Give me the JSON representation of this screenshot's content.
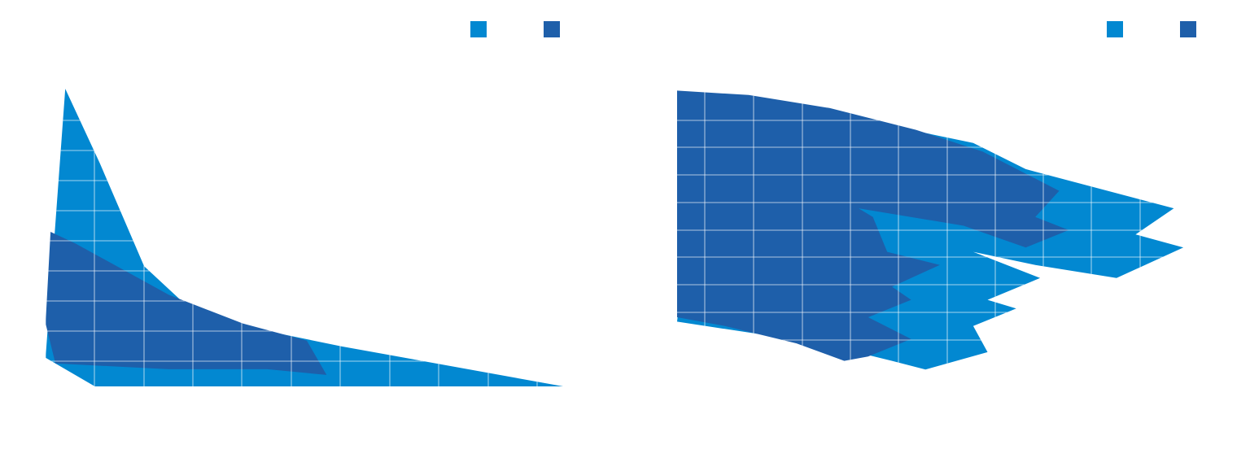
{
  "colors": {
    "series_a": "#0288D1",
    "series_b": "#1E5FAA",
    "grid": "#ffffff",
    "background": "#ffffff"
  },
  "chart_data": [
    {
      "type": "area",
      "title": "",
      "xlabel": "",
      "ylabel": "",
      "grid": true,
      "legend_position": "top-right",
      "series": [
        {
          "color": "#0288D1",
          "outline": [
            [
              0.4,
              6.3
            ],
            [
              1.1,
              5.0
            ],
            [
              2.0,
              3.2
            ],
            [
              3.0,
              2.4
            ],
            [
              4.3,
              2.1
            ],
            [
              6.0,
              1.8
            ],
            [
              10.5,
              1.1
            ],
            [
              1.0,
              1.1
            ],
            [
              0.0,
              1.6
            ]
          ]
        },
        {
          "color": "#1E5FAA",
          "outline": [
            [
              0.1,
              3.8
            ],
            [
              0.6,
              3.6
            ],
            [
              2.5,
              2.7
            ],
            [
              4.0,
              2.2
            ],
            [
              5.3,
              1.9
            ],
            [
              5.7,
              1.3
            ],
            [
              4.5,
              1.4
            ],
            [
              2.5,
              1.4
            ],
            [
              0.2,
              1.5
            ],
            [
              0.0,
              2.2
            ]
          ]
        }
      ]
    },
    {
      "type": "area",
      "title": "",
      "xlabel": "",
      "ylabel": "",
      "grid": true,
      "legend_position": "top-right",
      "series": [
        {
          "color": "#0288D1",
          "outline": [
            [
              0.5,
              9.3
            ],
            [
              2.5,
              9.2
            ],
            [
              4.0,
              8.9
            ],
            [
              6.2,
              8.4
            ],
            [
              7.3,
              7.8
            ],
            [
              10.4,
              6.9
            ],
            [
              9.6,
              6.3
            ],
            [
              10.6,
              6.0
            ],
            [
              9.2,
              5.3
            ],
            [
              7.5,
              5.6
            ],
            [
              6.2,
              5.9
            ],
            [
              7.6,
              5.3
            ],
            [
              6.5,
              4.8
            ],
            [
              7.1,
              4.6
            ],
            [
              6.2,
              4.2
            ],
            [
              6.5,
              3.6
            ],
            [
              5.2,
              3.2
            ],
            [
              4.5,
              3.4
            ],
            [
              3.0,
              3.8
            ],
            [
              0.0,
              4.3
            ]
          ]
        },
        {
          "color": "#1E5FAA",
          "outline": [
            [
              0.0,
              9.6
            ],
            [
              1.5,
              9.5
            ],
            [
              3.2,
              9.2
            ],
            [
              5.0,
              8.7
            ],
            [
              6.4,
              8.2
            ],
            [
              8.0,
              7.3
            ],
            [
              7.5,
              6.7
            ],
            [
              8.2,
              6.4
            ],
            [
              7.3,
              6.0
            ],
            [
              6.0,
              6.5
            ],
            [
              3.8,
              6.9
            ],
            [
              4.1,
              6.7
            ],
            [
              4.4,
              5.9
            ],
            [
              5.5,
              5.6
            ],
            [
              4.5,
              5.1
            ],
            [
              4.9,
              4.8
            ],
            [
              4.0,
              4.4
            ],
            [
              4.9,
              3.9
            ],
            [
              4.0,
              3.5
            ],
            [
              3.5,
              3.4
            ],
            [
              2.5,
              3.8
            ],
            [
              1.0,
              4.2
            ],
            [
              0.0,
              4.4
            ]
          ]
        }
      ]
    }
  ]
}
